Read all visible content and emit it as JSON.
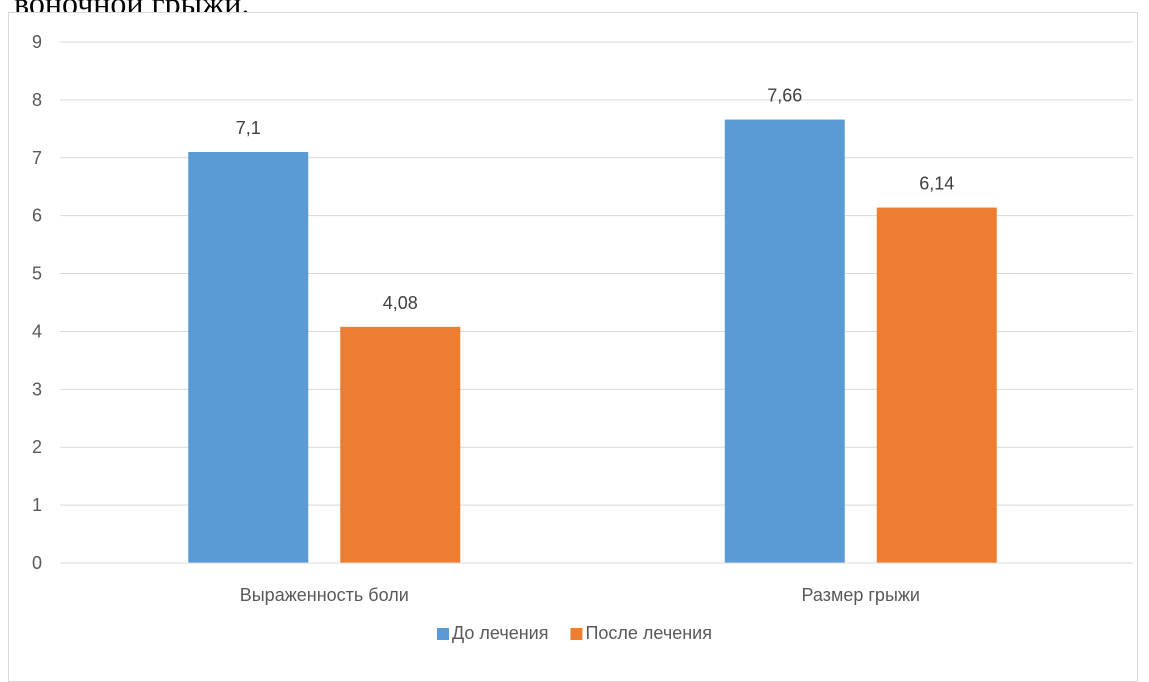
{
  "caption": "воночной грыжи.",
  "chart_data": {
    "type": "bar",
    "categories": [
      "Выраженность боли",
      "Размер грыжи"
    ],
    "series": [
      {
        "name": "До лечения",
        "values": [
          7.1,
          7.66
        ],
        "labels": [
          "7,1",
          "7,66"
        ],
        "color": "#5b9bd5"
      },
      {
        "name": "После лечения",
        "values": [
          4.08,
          6.14
        ],
        "labels": [
          "4,08",
          "6,14"
        ],
        "color": "#ed7d31"
      }
    ],
    "ylim": [
      0,
      9
    ],
    "yticks": [
      "0",
      "1",
      "2",
      "3",
      "4",
      "5",
      "6",
      "7",
      "8",
      "9"
    ],
    "grid": true,
    "legend": "bottom"
  }
}
